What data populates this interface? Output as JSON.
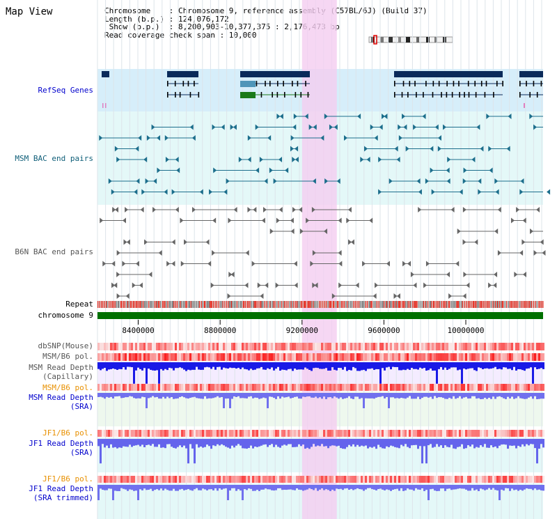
{
  "view_title": "Map View",
  "info": {
    "line1": "Chromosome    : Chromosome 9, reference assembly (C57BL/6J) (Build 37)",
    "line2": "Length (b.p.) : 124,076,172",
    "line3": " Show (b.p.)  : 8,200,903-10,377,375 : 2,176,473 bp",
    "line4": "Read coverage check span : 10,000"
  },
  "track_labels": {
    "refseq": "RefSeq Genes",
    "msm_bac": "MSM BAC end pairs",
    "b6n_bac": "B6N BAC end pairs",
    "repeat": "Repeat",
    "chromosome": "chromosome 9",
    "dbsnp": "dbSNP(Mouse)",
    "msm_pol1": "MSM/B6 pol.",
    "msm_depth_cap_1": "MSM Read Depth",
    "msm_depth_cap_2": "(Capillary)",
    "msm_pol2": "MSM/B6 pol.",
    "msm_depth_sra_1": "MSM Read Depth",
    "msm_depth_sra_2": "(SRA)",
    "jf1_pol1": "JF1/B6 pol.",
    "jf1_depth_sra_1": "JF1 Read Depth",
    "jf1_depth_sra_2": "(SRA)",
    "jf1_pol2": "JF1/B6 pol.",
    "jf1_depth_trim_1": "JF1 Read Depth",
    "jf1_depth_trim_2": "(SRA trimmed)"
  },
  "axis": {
    "start_bp": 8200903,
    "end_bp": 10377375,
    "ticks": [
      "8400000",
      "8800000",
      "9200000",
      "9600000",
      "10000000"
    ]
  },
  "highlight_region_bp": [
    9200000,
    9370000
  ],
  "colors": {
    "refseq_bg": "#d6eefa",
    "msm_bg": "#e4f8f8",
    "depth_bg": "#eef8ee",
    "highlight": "#f4cdf0",
    "gene": "#0a2a5a",
    "msm_pair": "#1c6e8c",
    "b6n_pair": "#666666",
    "repeat": "#e8281c",
    "chromosome": "#007000",
    "depth_blue": "#1515e0",
    "depth_light": "#7070ee",
    "label_blue": "#0000cc",
    "label_orange": "#e89000",
    "label_teal": "#0e5e78"
  }
}
